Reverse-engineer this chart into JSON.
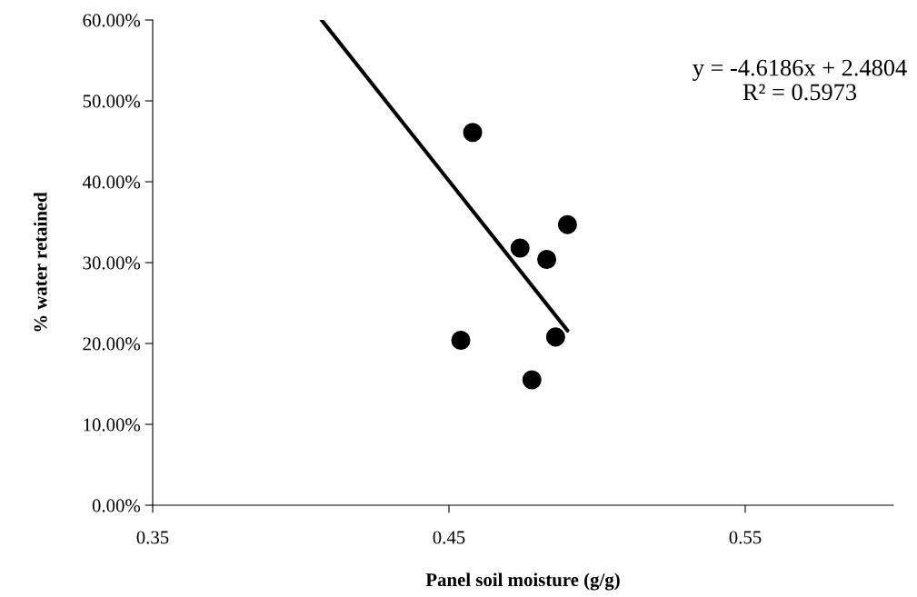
{
  "chart_data": {
    "type": "scatter",
    "xlabel": "Panel soil moisture (g/g)",
    "ylabel": "% water retained",
    "series": [
      {
        "color": "#000000",
        "marker": "circle",
        "x": [
          0.458,
          0.49,
          0.474,
          0.483,
          0.454,
          0.486,
          0.478
        ],
        "values": [
          0.461,
          0.347,
          0.318,
          0.304,
          0.204,
          0.208,
          0.155
        ]
      },
      {
        "type": "line",
        "color": "#000000",
        "marker": "none",
        "x": [
          0.407,
          0.49
        ],
        "values": [
          0.6,
          0.216
        ]
      }
    ],
    "xlim": [
      0.35,
      0.6
    ],
    "xticks": [
      0.35,
      0.45,
      0.55
    ],
    "ylim": [
      0,
      0.6
    ],
    "yticks": [
      {
        "value": 0,
        "label": "0.00%"
      },
      {
        "value": 0.1,
        "label": "10.00%"
      },
      {
        "value": 0.2,
        "label": "20.00%"
      },
      {
        "value": 0.3,
        "label": "30.00%"
      },
      {
        "value": 0.4,
        "label": "40.00%"
      },
      {
        "value": 0.5,
        "label": "50.00%"
      },
      {
        "value": 0.6,
        "label": "60.00%"
      }
    ],
    "annotations": [
      "y = -4.6186x + 2.4804\nR² = 0.5973"
    ],
    "grid": false,
    "legend": false
  }
}
